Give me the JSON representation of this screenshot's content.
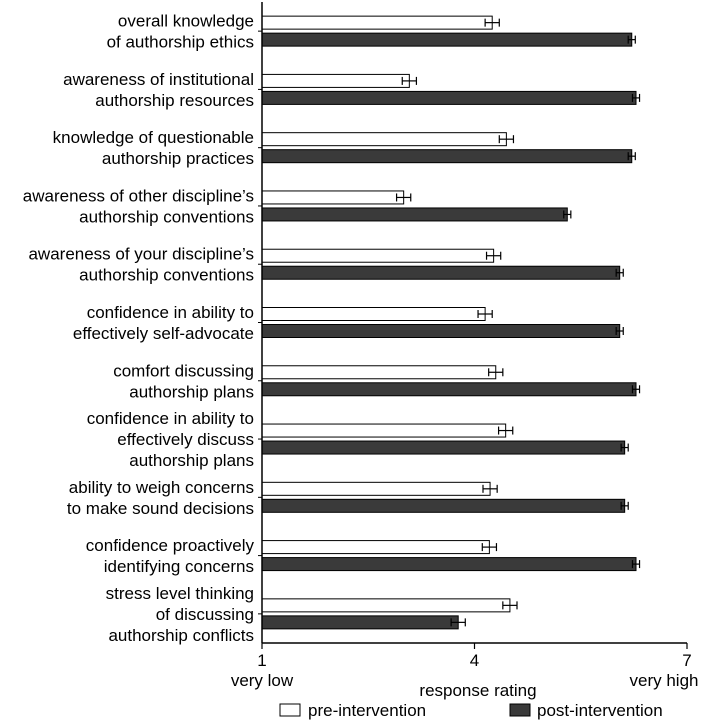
{
  "chart_data": {
    "type": "bar",
    "orientation": "horizontal",
    "categories": [
      [
        "overall knowledge",
        "of authorship ethics"
      ],
      [
        "awareness of institutional",
        "authorship resources"
      ],
      [
        "knowledge of questionable",
        "authorship practices"
      ],
      [
        "awareness of other discipline’s",
        "authorship conventions"
      ],
      [
        "awareness of your discipline’s",
        "authorship conventions"
      ],
      [
        "confidence in ability to",
        "effectively self-advocate"
      ],
      [
        "comfort discussing",
        "authorship plans"
      ],
      [
        "confidence in ability to",
        "effectively discuss",
        "authorship plans"
      ],
      [
        "ability to weigh concerns",
        "to make sound decisions"
      ],
      [
        "confidence proactively",
        "identifying concerns"
      ],
      [
        "stress level thinking",
        "of discussing",
        "authorship conflicts"
      ]
    ],
    "series": [
      {
        "name": "pre-intervention",
        "color": "#ffffff",
        "values": [
          4.25,
          3.08,
          4.45,
          3.0,
          4.27,
          4.15,
          4.3,
          4.44,
          4.22,
          4.21,
          4.5
        ],
        "errors": [
          0.1,
          0.1,
          0.1,
          0.1,
          0.1,
          0.1,
          0.1,
          0.1,
          0.1,
          0.1,
          0.1
        ]
      },
      {
        "name": "post-intervention",
        "color": "#3a3a3a",
        "values": [
          6.22,
          6.28,
          6.22,
          5.31,
          6.05,
          6.05,
          6.28,
          6.12,
          6.12,
          6.28,
          3.77
        ],
        "errors": [
          0.05,
          0.05,
          0.05,
          0.05,
          0.05,
          0.05,
          0.05,
          0.05,
          0.05,
          0.05,
          0.1
        ]
      }
    ],
    "xlim": [
      1,
      7
    ],
    "xticks": [
      1,
      4,
      7
    ],
    "xtick_labels": [
      "1",
      "4",
      "7"
    ],
    "x_extremes": {
      "low": "very low",
      "high": "very high"
    },
    "xlabel": "response rating",
    "ylabel": "",
    "title": "",
    "grid": false,
    "legend_position": "bottom"
  }
}
